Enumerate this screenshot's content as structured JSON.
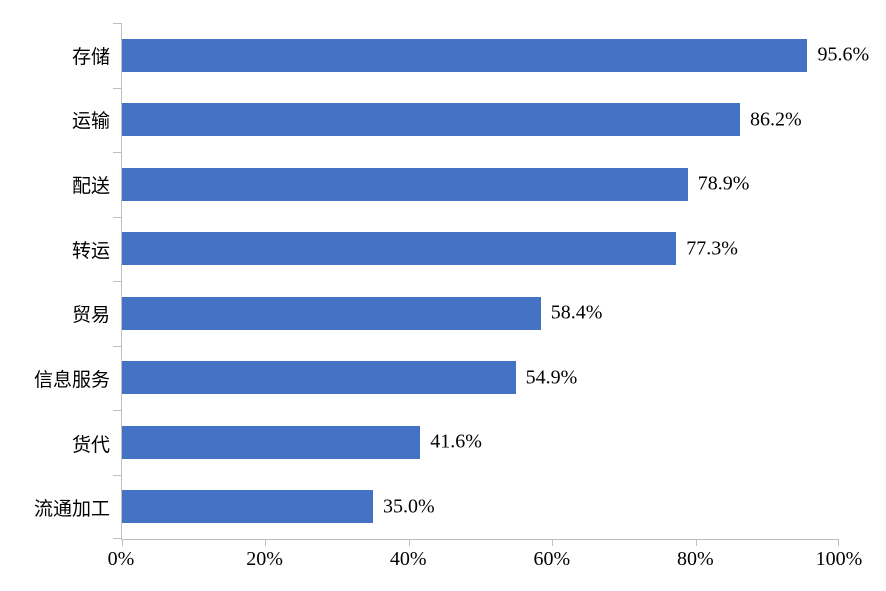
{
  "chart_data": {
    "type": "bar",
    "orientation": "horizontal",
    "title": "",
    "xlabel": "",
    "ylabel": "",
    "categories": [
      "存储",
      "运输",
      "配送",
      "转运",
      "贸易",
      "信息服务",
      "货代",
      "流通加工"
    ],
    "values": [
      95.6,
      86.2,
      78.9,
      77.3,
      58.4,
      54.9,
      41.6,
      35.0
    ],
    "value_labels": [
      "95.6%",
      "86.2%",
      "78.9%",
      "77.3%",
      "58.4%",
      "54.9%",
      "41.6%",
      "35.0%"
    ],
    "x_tick_labels": [
      "0%",
      "20%",
      "40%",
      "60%",
      "80%",
      "100%"
    ],
    "x_tick_values": [
      0,
      20,
      40,
      60,
      80,
      100
    ],
    "xlim": [
      0,
      100
    ],
    "grid": false,
    "legend": false,
    "bar_color": "#4472C4",
    "axis_color": "#BFBFBF",
    "text_color": "#000000",
    "background_color": "#FFFFFF"
  }
}
